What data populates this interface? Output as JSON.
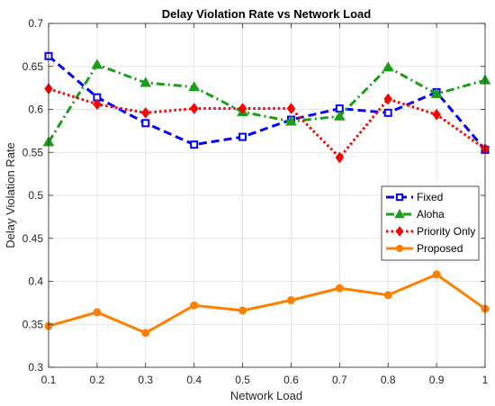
{
  "chart_data": {
    "type": "line",
    "title": "Delay Violation Rate vs Network Load",
    "xlabel": "Network Load",
    "ylabel": "Delay Violation Rate",
    "xlim": [
      0.1,
      1
    ],
    "ylim": [
      0.3,
      0.7
    ],
    "x_ticks": [
      "0.1",
      "0.2",
      "0.3",
      "0.4",
      "0.5",
      "0.6",
      "0.7",
      "0.8",
      "0.9",
      "1"
    ],
    "y_ticks": [
      "0.3",
      "0.35",
      "0.4",
      "0.45",
      "0.5",
      "0.55",
      "0.6",
      "0.65",
      "0.7"
    ],
    "grid": true,
    "legend_position": "center-right",
    "x": [
      0.1,
      0.2,
      0.3,
      0.4,
      0.5,
      0.6,
      0.7,
      0.8,
      0.9,
      1.0
    ],
    "series": [
      {
        "name": "Fixed",
        "color": "#0000ff",
        "line_style": "dashed",
        "marker": "square",
        "values": [
          0.662,
          0.614,
          0.584,
          0.559,
          0.568,
          0.588,
          0.601,
          0.596,
          0.62,
          0.553
        ]
      },
      {
        "name": "Aloha",
        "color": "#1a9e1a",
        "line_style": "dash-dot",
        "marker": "triangle",
        "values": [
          0.562,
          0.652,
          0.631,
          0.626,
          0.597,
          0.586,
          0.592,
          0.649,
          0.618,
          0.634
        ]
      },
      {
        "name": "Priority Only",
        "color": "#ff0000",
        "line_style": "dotted",
        "marker": "diamond",
        "values": [
          0.624,
          0.606,
          0.596,
          0.601,
          0.601,
          0.601,
          0.544,
          0.612,
          0.594,
          0.554
        ]
      },
      {
        "name": "Proposed",
        "color": "#ff8000",
        "line_style": "solid",
        "marker": "circle",
        "values": [
          0.348,
          0.364,
          0.34,
          0.372,
          0.366,
          0.378,
          0.392,
          0.384,
          0.408,
          0.368
        ]
      }
    ]
  }
}
